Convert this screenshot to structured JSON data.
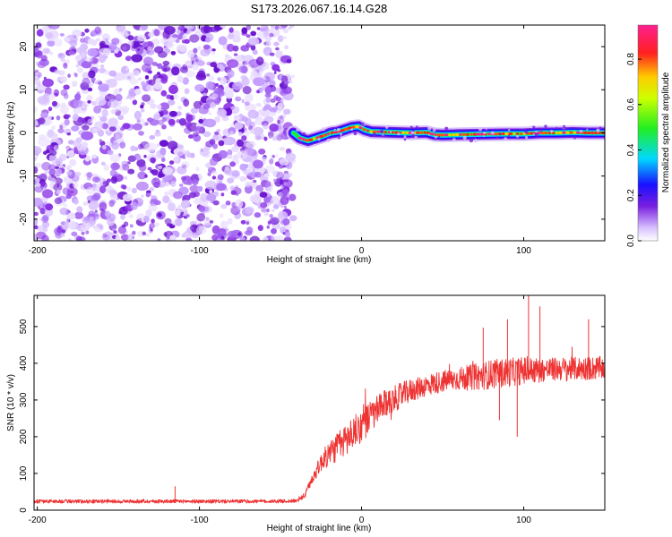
{
  "figure_title": "S173.2026.067.16.14.G28",
  "chart_data": [
    {
      "type": "heatmap",
      "title": "S173.2026.067.16.14.G28",
      "xlabel": "Height of straight line (km)",
      "ylabel": "Frequency (Hz)",
      "xlim": [
        -202,
        150
      ],
      "ylim": [
        -25,
        25
      ],
      "xticks": [
        -200,
        -100,
        0,
        100
      ],
      "yticks": [
        -20,
        -10,
        0,
        10,
        20
      ],
      "noise_region_x": [
        -202,
        -42
      ],
      "signal_region_x": [
        -42,
        150
      ],
      "signal_track": {
        "x": [
          -42,
          -38,
          -33,
          -28,
          -23,
          -19,
          -15,
          -10,
          -6,
          -2,
          2,
          6,
          12,
          20,
          30,
          40,
          45,
          50,
          60,
          75,
          90,
          100,
          110,
          120,
          130,
          140,
          150
        ],
        "freq": [
          0.0,
          -1.2,
          -1.8,
          -1.2,
          -0.6,
          0.0,
          0.2,
          0.8,
          1.3,
          1.5,
          0.7,
          0.3,
          0.2,
          0.1,
          0.0,
          0.1,
          -0.4,
          -0.5,
          -0.4,
          -0.3,
          -0.2,
          -0.2,
          0.0,
          0.0,
          0.1,
          0.0,
          0.0
        ]
      },
      "colorbar": {
        "label": "Normalized spectral amplitude",
        "range": [
          0,
          0.95
        ],
        "ticks": [
          "0.0",
          "0.2",
          "0.4",
          "0.6",
          "0.8"
        ],
        "tick_values": [
          0.0,
          0.2,
          0.4,
          0.6,
          0.8
        ]
      }
    },
    {
      "type": "line",
      "xlabel": "Height of straight line (km)",
      "ylabel": "SNR (10 * v/v)",
      "xlim": [
        -202,
        150
      ],
      "ylim": [
        0,
        585
      ],
      "xticks": [
        -200,
        -100,
        0,
        100
      ],
      "yticks": [
        0,
        100,
        200,
        300,
        400,
        500
      ],
      "series": [
        {
          "name": "SNR",
          "color": "#ee3333",
          "x": [
            -202,
            -150,
            -100,
            -60,
            -40,
            -35,
            -30,
            -25,
            -20,
            -15,
            -10,
            -5,
            0,
            5,
            10,
            15,
            20,
            25,
            30,
            35,
            40,
            45,
            50,
            55,
            60,
            65,
            70,
            75,
            80,
            85,
            90,
            95,
            100,
            105,
            110,
            115,
            120,
            125,
            130,
            135,
            140,
            145,
            150
          ],
          "y": [
            24,
            24,
            24,
            24,
            25,
            40,
            90,
            130,
            155,
            172,
            190,
            212,
            230,
            252,
            272,
            290,
            302,
            315,
            325,
            332,
            340,
            346,
            351,
            355,
            358,
            360,
            363,
            366,
            370,
            372,
            375,
            377,
            380,
            381,
            382,
            383,
            384,
            385,
            385,
            386,
            386,
            387,
            387
          ],
          "noise_amplitude": [
            5,
            5,
            5,
            5,
            5,
            8,
            15,
            25,
            35,
            40,
            45,
            45,
            45,
            45,
            42,
            38,
            36,
            34,
            32,
            30,
            30,
            30,
            30,
            30,
            32,
            34,
            36,
            38,
            40,
            40,
            40,
            38,
            38,
            36,
            34,
            32,
            32,
            32,
            32,
            32,
            32,
            32,
            32
          ],
          "spikes": [
            {
              "x": -115,
              "y": 65
            },
            {
              "x": 75,
              "y": 497
            },
            {
              "x": 90,
              "y": 520
            },
            {
              "x": 103,
              "y": 585
            },
            {
              "x": 110,
              "y": 555
            },
            {
              "x": 140,
              "y": 520
            },
            {
              "x": 85,
              "y": 245
            },
            {
              "x": 96,
              "y": 200
            }
          ]
        }
      ]
    }
  ]
}
